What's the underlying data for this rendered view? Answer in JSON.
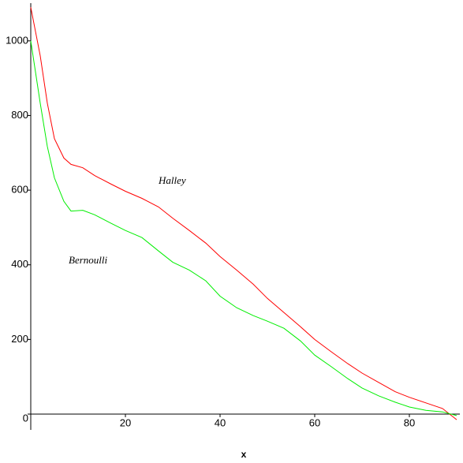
{
  "chart_data": {
    "type": "line",
    "x_label": "x",
    "annotations": [
      "Halley",
      "Bernoulli"
    ],
    "x": [
      0,
      2,
      3.5,
      5,
      7,
      8.5,
      11,
      13.5,
      17,
      20,
      23.5,
      27,
      30,
      33.5,
      37,
      40,
      43.5,
      47,
      50,
      53.5,
      57,
      60,
      63.5,
      67,
      70,
      73.5,
      77,
      80,
      83.5,
      87,
      90
    ],
    "series": [
      {
        "name": "Halley",
        "color": "#ff0000",
        "values": [
          1090,
          960,
          833,
          738,
          686,
          669,
          660,
          639,
          616,
          597,
          578,
          555,
          525,
          492,
          458,
          422,
          386,
          348,
          310,
          272,
          234,
          200,
          167,
          135,
          110,
          85,
          60,
          45,
          30,
          15,
          -15
        ]
      },
      {
        "name": "Bernoulli",
        "color": "#00ee00",
        "values": [
          1000,
          833,
          717,
          633,
          570,
          544,
          546,
          534,
          511,
          492,
          473,
          437,
          407,
          386,
          357,
          316,
          285,
          264,
          249,
          230,
          196,
          158,
          127,
          95,
          70,
          49,
          32,
          19,
          10,
          6,
          -4
        ]
      }
    ],
    "xlim": [
      0,
      90
    ],
    "ylim": [
      -30,
      1100
    ],
    "xticks": [
      20,
      40,
      60,
      80
    ],
    "yticks": [
      0,
      200,
      400,
      600,
      800,
      1000
    ]
  }
}
